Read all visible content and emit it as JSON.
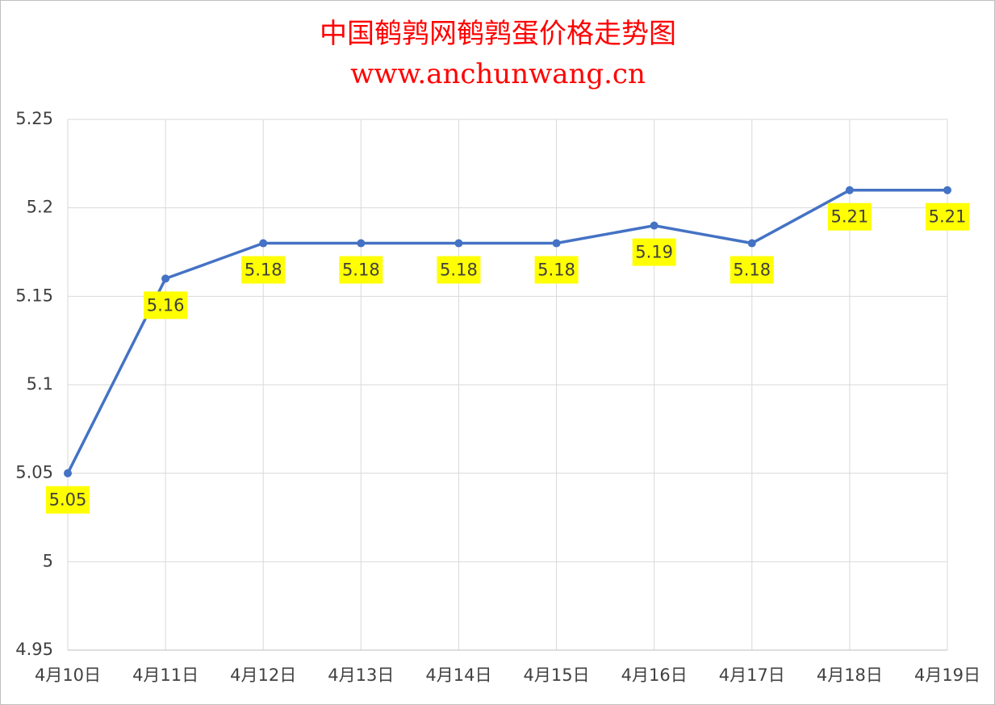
{
  "chart_data": {
    "type": "line",
    "title": "中国鹌鹑网鹌鹑蛋价格走势图",
    "subtitle": "www.anchunwang.cn",
    "categories": [
      "4月10日",
      "4月11日",
      "4月12日",
      "4月13日",
      "4月14日",
      "4月15日",
      "4月16日",
      "4月17日",
      "4月18日",
      "4月19日"
    ],
    "series": [
      {
        "name": "鹌鹑蛋价格",
        "color": "#4472c4",
        "values": [
          5.05,
          5.16,
          5.18,
          5.18,
          5.18,
          5.18,
          5.19,
          5.18,
          5.21,
          5.21
        ]
      }
    ],
    "ylim": [
      4.95,
      5.25
    ],
    "yticks": [
      4.95,
      5,
      5.05,
      5.1,
      5.15,
      5.2,
      5.25
    ],
    "grid": true,
    "label_color": "#ffff00",
    "title_color": "#ff0000"
  }
}
